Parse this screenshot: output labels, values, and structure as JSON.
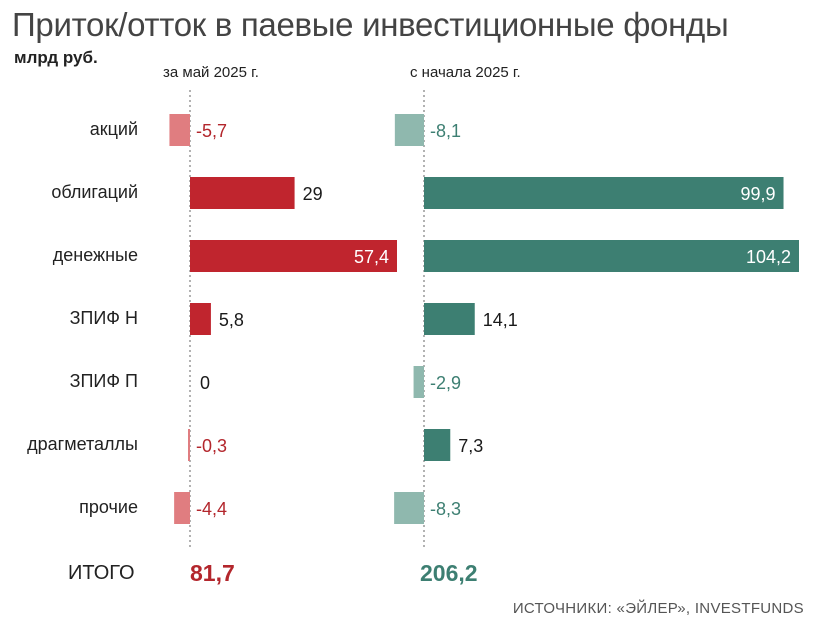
{
  "title": "Приток/отток в паевые инвестиционные фонды",
  "unit": "млрд руб.",
  "panels": {
    "left_header": "за май 2025 г.",
    "right_header": "с начала 2025 г."
  },
  "total": {
    "label": "ИТОГО",
    "left": "81,7",
    "right": "206,2"
  },
  "source": "ИСТОЧНИКИ: «ЭЙЛЕР», INVESTFUNDS",
  "colors": {
    "left_pos": "#c0252e",
    "left_neg": "#e07d80",
    "right_pos": "#3d7f72",
    "right_neg": "#8fb8ae",
    "left_total": "#b3262c",
    "right_total": "#3d7f72"
  },
  "chart_data": {
    "type": "bar",
    "orientation": "horizontal",
    "categories": [
      "акций",
      "облигаций",
      "денежные",
      "ЗПИФ Н",
      "ЗПИФ П",
      "драгметаллы",
      "прочие"
    ],
    "series": [
      {
        "name": "за май 2025 г.",
        "values": [
          -5.7,
          29,
          57.4,
          5.8,
          0,
          -0.3,
          -4.4
        ],
        "labels": [
          "-5,7",
          "29",
          "57,4",
          "5,8",
          "0",
          "-0,3",
          "-4,4"
        ]
      },
      {
        "name": "с начала 2025 г.",
        "values": [
          -8.1,
          99.9,
          104.2,
          14.1,
          -2.9,
          7.3,
          -8.3
        ],
        "labels": [
          "-8,1",
          "99,9",
          "104,2",
          "14,1",
          "-2,9",
          "7,3",
          "-8,3"
        ]
      }
    ]
  }
}
